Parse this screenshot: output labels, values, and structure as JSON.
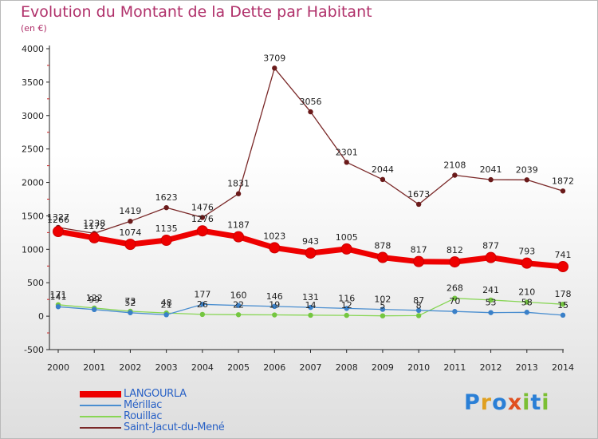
{
  "title": "Evolution du Montant de la Dette par Habitant",
  "subtitle": "(en €)",
  "logo": {
    "letters": [
      {
        "char": "P",
        "color": "#2a7fd6"
      },
      {
        "char": "r",
        "color": "#e0a020"
      },
      {
        "char": "o",
        "color": "#2a7fd6"
      },
      {
        "char": "x",
        "color": "#e05020"
      },
      {
        "char": "i",
        "color": "#7bbf33"
      },
      {
        "char": "t",
        "color": "#2a7fd6"
      },
      {
        "char": "i",
        "color": "#7bbf33"
      }
    ]
  },
  "chart_data": {
    "type": "line",
    "title": "Evolution du Montant de la Dette par Habitant",
    "subtitle": "(en €)",
    "x": [
      2000,
      2001,
      2002,
      2003,
      2004,
      2005,
      2006,
      2007,
      2008,
      2009,
      2010,
      2011,
      2012,
      2013,
      2014
    ],
    "ylim": [
      -500,
      4000
    ],
    "yticks": [
      -500,
      0,
      500,
      1000,
      1500,
      2000,
      2500,
      3000,
      3500,
      4000
    ],
    "grid": false,
    "legend_position": "bottom-left",
    "series": [
      {
        "name": "Saint-Jacut-du-Mené",
        "color": "#7a2828",
        "values": [
          1327,
          1238,
          1419,
          1623,
          1476,
          1831,
          3709,
          3056,
          2301,
          2044,
          1673,
          2108,
          2041,
          2039,
          1872
        ]
      },
      {
        "name": "LANGOURLA",
        "color": "#ee0000",
        "values": [
          1266,
          1172,
          1074,
          1135,
          1276,
          1187,
          1023,
          943,
          1005,
          878,
          817,
          812,
          877,
          793,
          741
        ]
      },
      {
        "name": "Mérillac",
        "color": "#4a8ed0",
        "values": [
          141,
          99,
          52,
          21,
          177,
          160,
          146,
          131,
          116,
          102,
          87,
          70,
          53,
          58,
          15
        ]
      },
      {
        "name": "Rouillac",
        "color": "#88d655",
        "values": [
          171,
          122,
          73,
          48,
          26,
          22,
          19,
          14,
          12,
          5,
          8,
          268,
          241,
          210,
          178
        ]
      }
    ],
    "legend_order": [
      "LANGOURLA",
      "Mérillac",
      "Rouillac",
      "Saint-Jacut-du-Mené"
    ]
  }
}
